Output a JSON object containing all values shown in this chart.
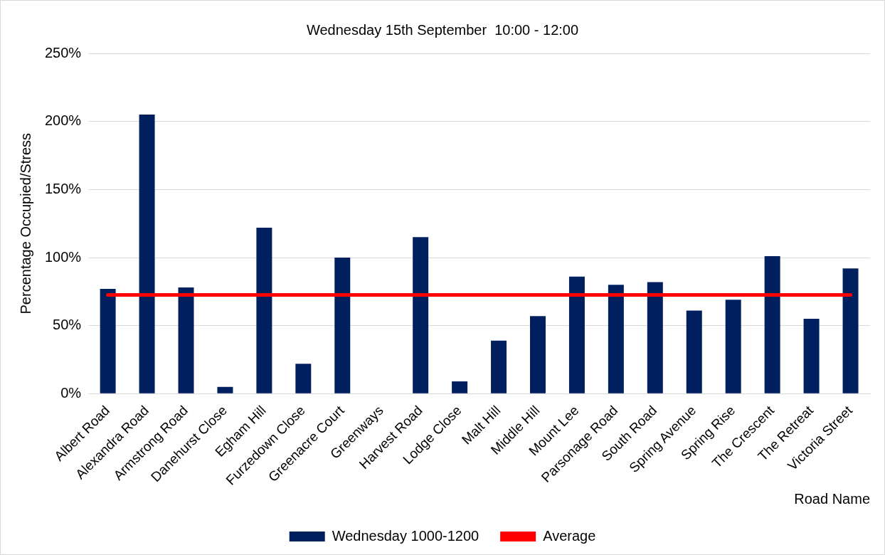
{
  "chart_data": {
    "type": "bar",
    "title": "Wednesday 15th September  10:00 - 12:00",
    "xlabel": "Road Name",
    "ylabel": "Percentage Occupied/Stress",
    "categories": [
      "Albert Road",
      "Alexandra Road",
      "Armstrong Road",
      "Danehurst Close",
      "Egham Hill",
      "Furzedown Close",
      "Greenacre Court",
      "Greenways",
      "Harvest Road",
      "Lodge Close",
      "Malt Hill",
      "Middle Hill",
      "Mount Lee",
      "Parsonage Road",
      "South Road",
      "Spring Avenue",
      "Spring Rise",
      "The Crescent",
      "The Retreat",
      "Victoria Street"
    ],
    "series": [
      {
        "name": "Wednesday 1000-1200",
        "color": "#001f5f",
        "values": [
          77,
          205,
          78,
          5,
          122,
          22,
          100,
          0,
          115,
          9,
          39,
          57,
          86,
          80,
          82,
          61,
          69,
          101,
          55,
          92
        ]
      },
      {
        "name": "Average",
        "type": "line",
        "color": "#ff0000",
        "values": [
          72.5,
          72.5,
          72.5,
          72.5,
          72.5,
          72.5,
          72.5,
          72.5,
          72.5,
          72.5,
          72.5,
          72.5,
          72.5,
          72.5,
          72.5,
          72.5,
          72.5,
          72.5,
          72.5,
          72.5
        ]
      }
    ],
    "ylim": [
      0,
      250
    ],
    "yticks": [
      {
        "value": 0,
        "label": "0%"
      },
      {
        "value": 50,
        "label": "50%"
      },
      {
        "value": 100,
        "label": "100%"
      },
      {
        "value": 150,
        "label": "150%"
      },
      {
        "value": 200,
        "label": "200%"
      },
      {
        "value": 250,
        "label": "250%"
      }
    ],
    "grid": "y",
    "legend": "bottom",
    "marker": "none",
    "line_style": "solid"
  }
}
